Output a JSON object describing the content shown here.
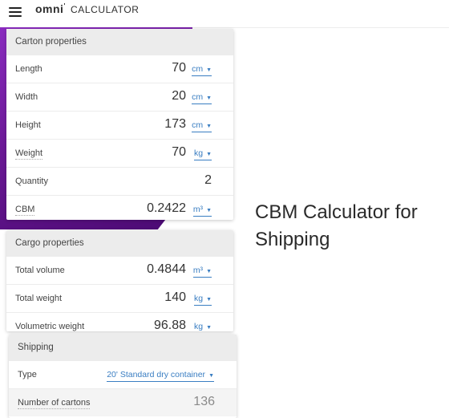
{
  "header": {
    "brand": "omni",
    "brand_mark": "'",
    "sub": "CALCULATOR"
  },
  "page_title": "CBM Calculator for Shipping",
  "carton": {
    "title": "Carton properties",
    "rows": [
      {
        "label": "Length",
        "value": "70",
        "unit": "cm"
      },
      {
        "label": "Width",
        "value": "20",
        "unit": "cm"
      },
      {
        "label": "Height",
        "value": "173",
        "unit": "cm"
      },
      {
        "label": "Weight",
        "value": "70",
        "unit": "kg"
      },
      {
        "label": "Quantity",
        "value": "2",
        "unit": ""
      },
      {
        "label": "CBM",
        "value": "0.2422",
        "unit": "m³"
      }
    ]
  },
  "cargo": {
    "title": "Cargo properties",
    "rows": [
      {
        "label": "Total volume",
        "value": "0.4844",
        "unit": "m³"
      },
      {
        "label": "Total weight",
        "value": "140",
        "unit": "kg"
      },
      {
        "label": "Volumetric weight",
        "value": "96.88",
        "unit": "kg"
      }
    ]
  },
  "shipping": {
    "title": "Shipping",
    "type_label": "Type",
    "type_value": "20' Standard dry container",
    "cartons_label": "Number of cartons",
    "cartons_value": "136"
  },
  "colors": {
    "accent": "#3a7ec2",
    "purple": "#6b1896"
  }
}
